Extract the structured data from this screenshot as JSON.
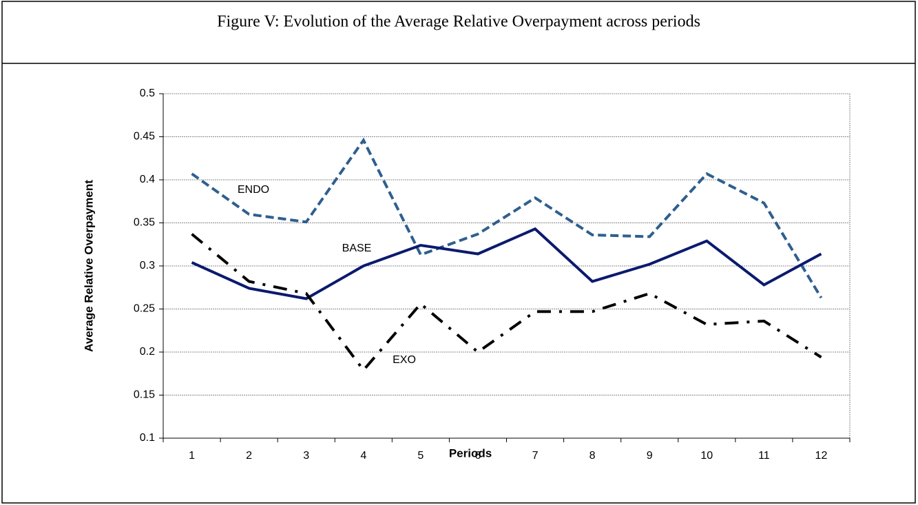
{
  "chart_data": {
    "type": "line",
    "title": "Figure V: Evolution of the Average Relative Overpayment across periods",
    "x_label": "Periods",
    "y_label": "Average Relative Overpayment",
    "categories": [
      "1",
      "2",
      "3",
      "4",
      "5",
      "6",
      "7",
      "8",
      "9",
      "10",
      "11",
      "12"
    ],
    "series": [
      {
        "name": "ENDO",
        "color": "#2e5f8f",
        "dash": "dashed",
        "values": [
          0.407,
          0.36,
          0.351,
          0.446,
          0.313,
          0.337,
          0.379,
          0.336,
          0.334,
          0.407,
          0.373,
          0.263
        ]
      },
      {
        "name": "BASE",
        "color": "#0b1a6e",
        "dash": "solid",
        "values": [
          0.304,
          0.274,
          0.262,
          0.3,
          0.324,
          0.314,
          0.343,
          0.282,
          0.302,
          0.329,
          0.278,
          0.314
        ]
      },
      {
        "name": "EXO",
        "color": "#000000",
        "dash": "dashdot",
        "values": [
          0.337,
          0.282,
          0.268,
          0.179,
          0.256,
          0.2,
          0.247,
          0.247,
          0.268,
          0.232,
          0.236,
          0.194
        ]
      }
    ],
    "ylim": [
      0.1,
      0.5
    ],
    "yticks": [
      0.1,
      0.15,
      0.2,
      0.25,
      0.3,
      0.35,
      0.4,
      0.45,
      0.5
    ],
    "grid": true
  }
}
